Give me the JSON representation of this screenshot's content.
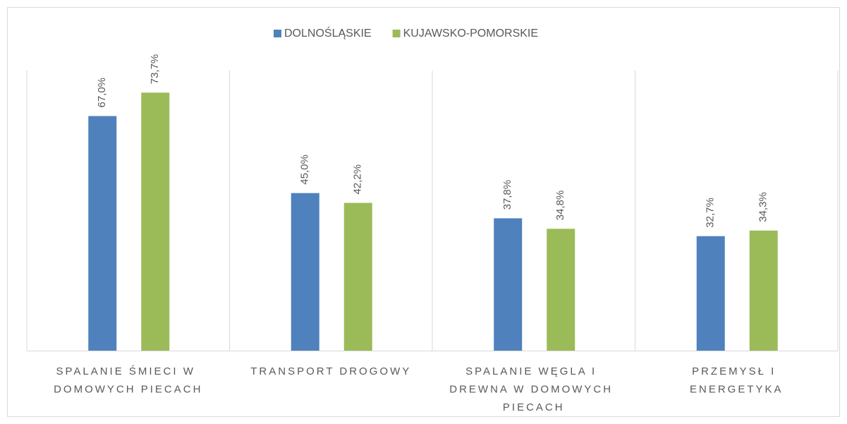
{
  "chart_data": {
    "type": "bar",
    "categories": [
      "SPALANIE ŚMIECI W DOMOWYCH PIECACH",
      "TRANSPORT DROGOWY",
      "SPALANIE WĘGLA I DREWNA W DOMOWYCH PIECACH",
      "PRZEMYSŁ I ENERGETYKA"
    ],
    "series": [
      {
        "name": "DOLNOŚLĄSKIE",
        "color": "#4f81bd",
        "values": [
          67.0,
          45.0,
          37.8,
          32.7
        ],
        "value_labels": [
          "67,0%",
          "45,0%",
          "37,8%",
          "32,7%"
        ]
      },
      {
        "name": "KUJAWSKO-POMORSKIE",
        "color": "#9bbb59",
        "values": [
          73.7,
          42.2,
          34.8,
          34.3
        ],
        "value_labels": [
          "73,7%",
          "42,2%",
          "34,8%",
          "34,3%"
        ]
      }
    ],
    "ylim": [
      0,
      80
    ],
    "legend": "top"
  }
}
